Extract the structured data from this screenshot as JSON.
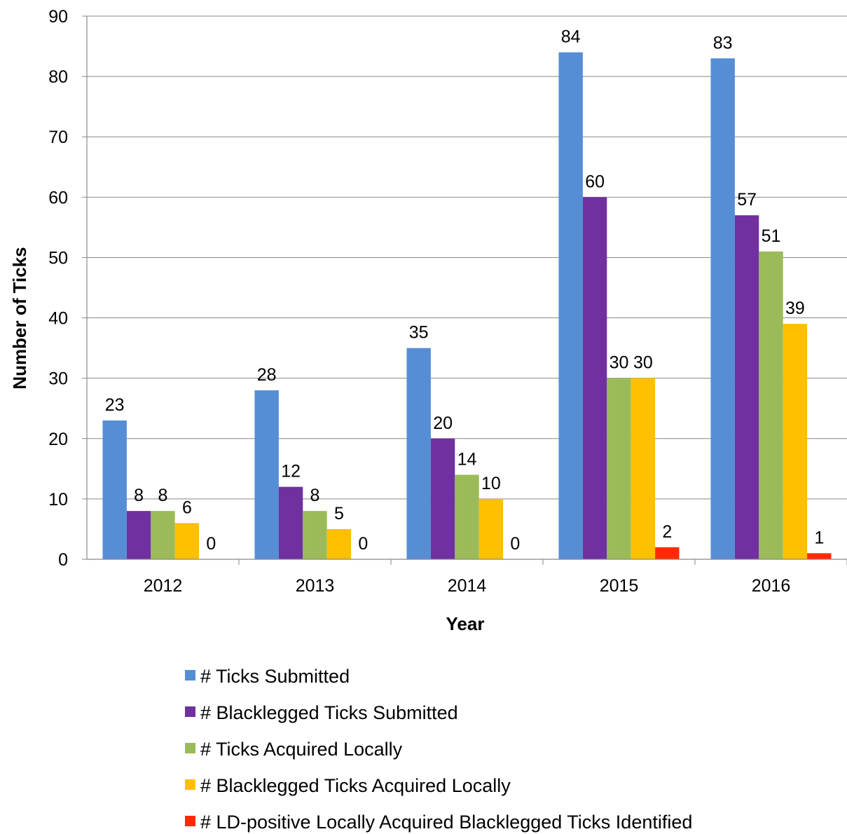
{
  "chart_data": {
    "type": "bar",
    "xlabel": "Year",
    "ylabel": "Number of Ticks",
    "ylim": [
      0,
      90
    ],
    "yticks": [
      0,
      10,
      20,
      30,
      40,
      50,
      60,
      70,
      80,
      90
    ],
    "grid": true,
    "legend_position": "bottom",
    "categories": [
      "2012",
      "2013",
      "2014",
      "2015",
      "2016"
    ],
    "series": [
      {
        "name": "# Ticks Submitted",
        "color": "#558ED5",
        "values": [
          23,
          28,
          35,
          84,
          83
        ]
      },
      {
        "name": "# Blacklegged Ticks Submitted",
        "color": "#7030A0",
        "values": [
          8,
          12,
          20,
          60,
          57
        ]
      },
      {
        "name": "# Ticks Acquired Locally",
        "color": "#9BBB59",
        "values": [
          8,
          8,
          14,
          30,
          51
        ]
      },
      {
        "name": "# Blacklegged Ticks Acquired Locally",
        "color": "#FFC000",
        "values": [
          6,
          5,
          10,
          30,
          39
        ]
      },
      {
        "name": "# LD-positive Locally Acquired Blacklegged Ticks Identified",
        "color": "#FF2A00",
        "values": [
          0,
          0,
          0,
          2,
          1
        ]
      }
    ]
  }
}
